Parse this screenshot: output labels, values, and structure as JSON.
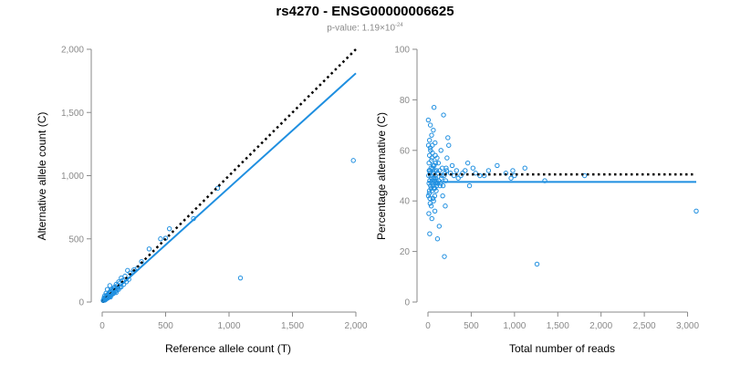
{
  "title": "rs4270 - ENSG00000006625",
  "subtitle": {
    "prefix": "p-value: 1.19×10",
    "exponent": "-24"
  },
  "colors": {
    "points": "#1f8fe0",
    "fit": "#1f8fe0",
    "reference": "#000000",
    "axis": "#8a8a8a"
  },
  "chart_data": [
    {
      "type": "scatter",
      "xlabel": "Reference allele count (T)",
      "ylabel": "Alternative allele count (C)",
      "xlim": [
        0,
        2000
      ],
      "ylim": [
        0,
        2000
      ],
      "xticks": [
        0,
        500,
        1000,
        1500,
        2000
      ],
      "xtick_labels": [
        "0",
        "500",
        "1,000",
        "1,500",
        "2,000"
      ],
      "yticks": [
        0,
        500,
        1000,
        1500,
        2000
      ],
      "ytick_labels": [
        "0",
        "500",
        "1,000",
        "1,500",
        "2,000"
      ],
      "grid": false,
      "reference_line": {
        "style": "dotted",
        "from": [
          0,
          0
        ],
        "to": [
          2000,
          2000
        ]
      },
      "fit_line": {
        "style": "solid",
        "from": [
          0,
          0
        ],
        "to": [
          2000,
          1810
        ]
      },
      "points": [
        [
          1980,
          1120
        ],
        [
          1090,
          190
        ],
        [
          910,
          900
        ],
        [
          720,
          660
        ],
        [
          530,
          580
        ],
        [
          500,
          505
        ],
        [
          460,
          500
        ],
        [
          370,
          420
        ],
        [
          310,
          320
        ],
        [
          280,
          270
        ],
        [
          250,
          255
        ],
        [
          220,
          230
        ],
        [
          200,
          250
        ],
        [
          180,
          205
        ],
        [
          160,
          170
        ],
        [
          150,
          190
        ],
        [
          140,
          150
        ],
        [
          130,
          160
        ],
        [
          120,
          130
        ],
        [
          110,
          140
        ],
        [
          100,
          120
        ],
        [
          95,
          100
        ],
        [
          90,
          110
        ],
        [
          85,
          95
        ],
        [
          80,
          90
        ],
        [
          75,
          100
        ],
        [
          70,
          80
        ],
        [
          65,
          85
        ],
        [
          60,
          70
        ],
        [
          55,
          75
        ],
        [
          50,
          60
        ],
        [
          48,
          55
        ],
        [
          45,
          50
        ],
        [
          42,
          58
        ],
        [
          40,
          45
        ],
        [
          38,
          50
        ],
        [
          35,
          40
        ],
        [
          33,
          42
        ],
        [
          30,
          35
        ],
        [
          28,
          38
        ],
        [
          25,
          30
        ],
        [
          22,
          28
        ],
        [
          20,
          25
        ],
        [
          18,
          22
        ],
        [
          15,
          20
        ],
        [
          12,
          18
        ],
        [
          10,
          15
        ],
        [
          8,
          12
        ],
        [
          140,
          120
        ],
        [
          125,
          110
        ],
        [
          115,
          95
        ],
        [
          105,
          90
        ],
        [
          100,
          80
        ],
        [
          90,
          70
        ],
        [
          85,
          65
        ],
        [
          75,
          60
        ],
        [
          70,
          55
        ],
        [
          60,
          45
        ],
        [
          55,
          40
        ],
        [
          50,
          38
        ],
        [
          45,
          32
        ],
        [
          40,
          30
        ],
        [
          35,
          28
        ],
        [
          30,
          22
        ],
        [
          25,
          18
        ],
        [
          20,
          15
        ],
        [
          60,
          130
        ],
        [
          40,
          100
        ],
        [
          30,
          70
        ],
        [
          20,
          50
        ],
        [
          15,
          35
        ],
        [
          65,
          40
        ],
        [
          170,
          140
        ],
        [
          190,
          160
        ],
        [
          210,
          180
        ],
        [
          110,
          75
        ],
        [
          130,
          100
        ],
        [
          150,
          120
        ]
      ]
    },
    {
      "type": "scatter",
      "xlabel": "Total number of reads",
      "ylabel": "Percentage alternative (C)",
      "xlim": [
        0,
        3100
      ],
      "ylim": [
        0,
        100
      ],
      "xticks": [
        0,
        500,
        1000,
        1500,
        2000,
        2500,
        3000
      ],
      "xtick_labels": [
        "0",
        "500",
        "1,000",
        "1,500",
        "2,000",
        "2,500",
        "3,000"
      ],
      "yticks": [
        0,
        20,
        40,
        60,
        80,
        100
      ],
      "ytick_labels": [
        "0",
        "20",
        "40",
        "60",
        "80",
        "100"
      ],
      "grid": false,
      "reference_line": {
        "style": "dotted",
        "y": 50.5
      },
      "fit_line": {
        "style": "solid",
        "y": 47.5
      },
      "points": [
        [
          3100,
          36
        ],
        [
          1260,
          15
        ],
        [
          1810,
          50
        ],
        [
          1350,
          48
        ],
        [
          1120,
          53
        ],
        [
          1000,
          50
        ],
        [
          980,
          52
        ],
        [
          960,
          49
        ],
        [
          900,
          51
        ],
        [
          800,
          54
        ],
        [
          700,
          52
        ],
        [
          650,
          50
        ],
        [
          600,
          50
        ],
        [
          550,
          51
        ],
        [
          520,
          53
        ],
        [
          480,
          46
        ],
        [
          460,
          55
        ],
        [
          430,
          52
        ],
        [
          400,
          51
        ],
        [
          380,
          50
        ],
        [
          350,
          49
        ],
        [
          330,
          52
        ],
        [
          300,
          50
        ],
        [
          280,
          54
        ],
        [
          260,
          51
        ],
        [
          240,
          62
        ],
        [
          230,
          65
        ],
        [
          220,
          57
        ],
        [
          210,
          53
        ],
        [
          200,
          38
        ],
        [
          190,
          18
        ],
        [
          180,
          74
        ],
        [
          170,
          42
        ],
        [
          160,
          50
        ],
        [
          150,
          60
        ],
        [
          140,
          46
        ],
        [
          130,
          30
        ],
        [
          120,
          55
        ],
        [
          110,
          25
        ],
        [
          100,
          52
        ],
        [
          95,
          44
        ],
        [
          90,
          49
        ],
        [
          85,
          58
        ],
        [
          80,
          36
        ],
        [
          75,
          48
        ],
        [
          70,
          77
        ],
        [
          65,
          40
        ],
        [
          60,
          54
        ],
        [
          55,
          47
        ],
        [
          50,
          62
        ],
        [
          45,
          33
        ],
        [
          40,
          56
        ],
        [
          35,
          45
        ],
        [
          30,
          60
        ],
        [
          28,
          70
        ],
        [
          25,
          39
        ],
        [
          22,
          52
        ],
        [
          20,
          27
        ],
        [
          18,
          64
        ],
        [
          15,
          43
        ],
        [
          12,
          55
        ],
        [
          10,
          35
        ],
        [
          8,
          50
        ],
        [
          6,
          62
        ],
        [
          5,
          42
        ],
        [
          4,
          72
        ],
        [
          110,
          47
        ],
        [
          115,
          51
        ],
        [
          125,
          48
        ],
        [
          135,
          52
        ],
        [
          145,
          47
        ],
        [
          155,
          49
        ],
        [
          165,
          53
        ],
        [
          175,
          46
        ],
        [
          185,
          50
        ],
        [
          195,
          51
        ],
        [
          205,
          48
        ],
        [
          215,
          52
        ],
        [
          50,
          48
        ],
        [
          55,
          53
        ],
        [
          60,
          46
        ],
        [
          65,
          51
        ],
        [
          70,
          49
        ],
        [
          75,
          52
        ],
        [
          80,
          45
        ],
        [
          85,
          50
        ],
        [
          90,
          55
        ],
        [
          95,
          48
        ],
        [
          100,
          46
        ],
        [
          105,
          57
        ],
        [
          20,
          48
        ],
        [
          25,
          51
        ],
        [
          30,
          46
        ],
        [
          35,
          53
        ],
        [
          40,
          49
        ],
        [
          45,
          57
        ],
        [
          12,
          47
        ],
        [
          14,
          52
        ],
        [
          16,
          44
        ],
        [
          18,
          58
        ],
        [
          22,
          41
        ],
        [
          26,
          61
        ],
        [
          32,
          50
        ],
        [
          38,
          38
        ],
        [
          42,
          66
        ],
        [
          48,
          44
        ],
        [
          52,
          59
        ],
        [
          58,
          41
        ],
        [
          62,
          68
        ],
        [
          68,
          45
        ],
        [
          72,
          54
        ],
        [
          78,
          42
        ],
        [
          82,
          63
        ],
        [
          88,
          47
        ]
      ]
    }
  ]
}
